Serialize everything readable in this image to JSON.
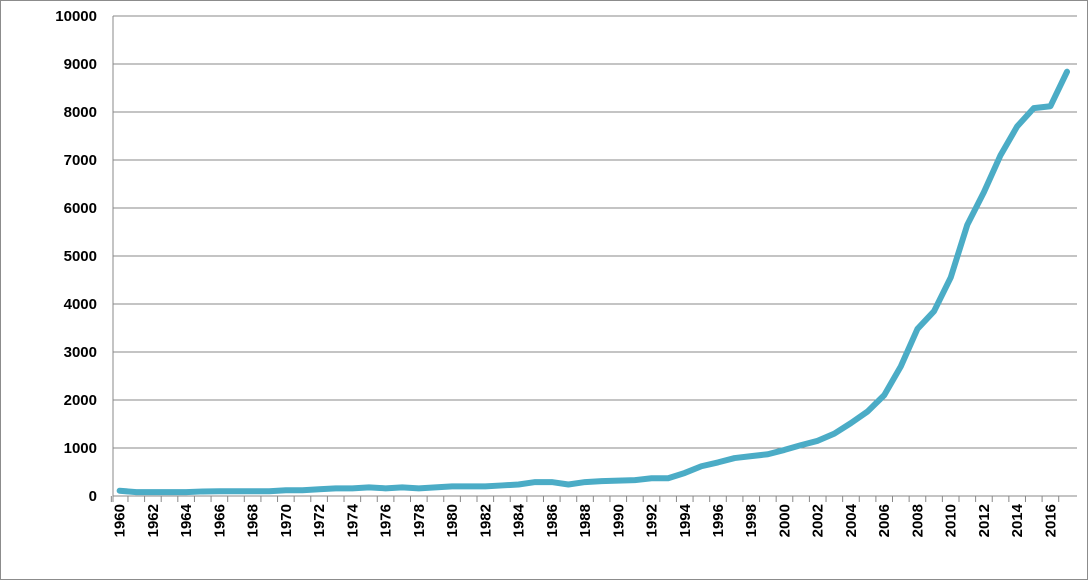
{
  "chart_data": {
    "type": "line",
    "title": "",
    "xlabel": "",
    "ylabel": "",
    "ylim": [
      0,
      10000
    ],
    "y_ticks": [
      0,
      1000,
      2000,
      3000,
      4000,
      5000,
      6000,
      7000,
      8000,
      9000,
      10000
    ],
    "x_tick_labels": [
      "1960",
      "1962",
      "1964",
      "1966",
      "1968",
      "1970",
      "1972",
      "1974",
      "1976",
      "1978",
      "1980",
      "1982",
      "1984",
      "1986",
      "1988",
      "1990",
      "1992",
      "1994",
      "1996",
      "1998",
      "2000",
      "2002",
      "2004",
      "2006",
      "2008",
      "2010",
      "2012",
      "2014",
      "2016"
    ],
    "grid": true,
    "legend": "none",
    "color": "#4bacc6",
    "x": [
      1960,
      1961,
      1962,
      1963,
      1964,
      1965,
      1966,
      1967,
      1968,
      1969,
      1970,
      1971,
      1972,
      1973,
      1974,
      1975,
      1976,
      1977,
      1978,
      1979,
      1980,
      1981,
      1982,
      1983,
      1984,
      1985,
      1986,
      1987,
      1988,
      1989,
      1990,
      1991,
      1992,
      1993,
      1994,
      1995,
      1996,
      1997,
      1998,
      1999,
      2000,
      2001,
      2002,
      2003,
      2004,
      2005,
      2006,
      2007,
      2008,
      2009,
      2010,
      2011,
      2012,
      2013,
      2014,
      2015,
      2016,
      2017
    ],
    "series": [
      {
        "values": [
          110,
          80,
          80,
          80,
          80,
          95,
          100,
          100,
          100,
          100,
          120,
          120,
          140,
          160,
          160,
          180,
          160,
          180,
          160,
          180,
          200,
          200,
          200,
          220,
          240,
          290,
          290,
          240,
          290,
          310,
          320,
          330,
          370,
          370,
          480,
          620,
          700,
          790,
          830,
          870,
          960,
          1060,
          1150,
          1300,
          1520,
          1760,
          2100,
          2700,
          3480,
          3850,
          4550,
          5650,
          6330,
          7100,
          7700,
          8080,
          8120,
          8840
        ]
      }
    ]
  }
}
